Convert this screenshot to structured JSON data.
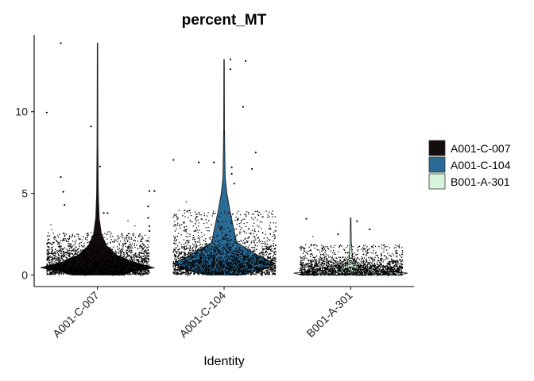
{
  "chart_data": {
    "type": "violin",
    "title": "percent_MT",
    "xlabel": "Identity",
    "ylabel": "",
    "ylim": [
      -0.7,
      14.7
    ],
    "yticks": [
      0,
      5,
      10
    ],
    "categories": [
      "A001-C-007",
      "A001-C-104",
      "B001-A-301"
    ],
    "legend": {
      "position": "right",
      "entries": [
        "A001-C-007",
        "A001-C-104",
        "B001-A-301"
      ]
    },
    "grid": false,
    "series": [
      {
        "name": "A001-C-007",
        "color": "#140d0d",
        "summary": {
          "min": 0.0,
          "max": 14.2,
          "mode": 0.45
        },
        "outliers": [
          [
            -0.29,
            14.2
          ],
          [
            -0.05,
            9.1
          ],
          [
            -0.4,
            9.95
          ],
          [
            0.02,
            6.65
          ],
          [
            -0.29,
            6.0
          ],
          [
            -0.27,
            5.1
          ],
          [
            -0.26,
            4.3
          ],
          [
            0.41,
            5.15
          ],
          [
            0.45,
            5.15
          ],
          [
            0.4,
            4.2
          ],
          [
            0.4,
            3.5
          ],
          [
            0.41,
            3.0
          ],
          [
            0.41,
            2.7
          ],
          [
            0.6,
            7.05
          ],
          [
            0.05,
            3.8
          ],
          [
            0.08,
            3.8
          ]
        ]
      },
      {
        "name": "A001-C-104",
        "color": "#2a6b96",
        "summary": {
          "min": 0.0,
          "max": 13.2,
          "mode": 0.7
        },
        "outliers": [
          [
            0.05,
            13.2
          ],
          [
            0.17,
            13.1
          ],
          [
            0.05,
            12.6
          ],
          [
            0.15,
            10.3
          ],
          [
            0.25,
            7.5
          ],
          [
            -0.2,
            6.9
          ],
          [
            -0.08,
            6.9
          ],
          [
            0.0,
            8.7
          ],
          [
            0.22,
            6.5
          ],
          [
            0.06,
            6.6
          ],
          [
            0.06,
            6.2
          ],
          [
            0.08,
            5.6
          ]
        ]
      },
      {
        "name": "B001-A-301",
        "color": "#d6f3dc",
        "summary": {
          "min": 0.0,
          "max": 3.5,
          "mode": 0.1
        },
        "outliers": [
          [
            -0.35,
            3.45
          ],
          [
            0.05,
            3.3
          ],
          [
            0.15,
            2.8
          ],
          [
            -0.1,
            2.5
          ]
        ]
      }
    ]
  }
}
